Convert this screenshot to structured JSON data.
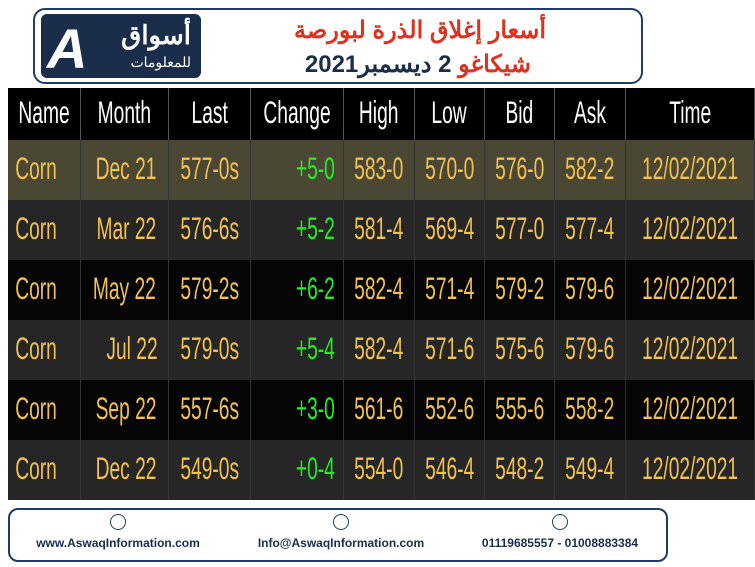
{
  "header": {
    "title_line1": "أسعار إغلاق الذرة لبورصة",
    "title_line2_city": "شيكاغو",
    "title_line2_date": "2 ديسمبر2021",
    "logo_name": "أسواق",
    "logo_sub": "للمعلومات",
    "logo_letter": "A"
  },
  "table": {
    "columns": [
      "Name",
      "Month",
      "Last",
      "Change",
      "High",
      "Low",
      "Bid",
      "Ask",
      "Time"
    ],
    "rows": [
      [
        "Corn",
        "Dec 21",
        "577-0s",
        "+5-0",
        "583-0",
        "570-0",
        "576-0",
        "582-2",
        "12/02/2021"
      ],
      [
        "Corn",
        "Mar 22",
        "576-6s",
        "+5-2",
        "581-4",
        "569-4",
        "577-0",
        "577-4",
        "12/02/2021"
      ],
      [
        "Corn",
        "May 22",
        "579-2s",
        "+6-2",
        "582-4",
        "571-4",
        "579-2",
        "579-6",
        "12/02/2021"
      ],
      [
        "Corn",
        "Jul 22",
        "579-0s",
        "+5-4",
        "582-4",
        "571-6",
        "575-6",
        "579-6",
        "12/02/2021"
      ],
      [
        "Corn",
        "Sep 22",
        "557-6s",
        "+3-0",
        "561-6",
        "552-6",
        "555-6",
        "558-2",
        "12/02/2021"
      ],
      [
        "Corn",
        "Dec 22",
        "549-0s",
        "+0-4",
        "554-0",
        "546-4",
        "548-2",
        "549-4",
        "12/02/2021"
      ]
    ]
  },
  "footer": {
    "website": "www.AswaqInformation.com",
    "email": "Info@AswaqInformation.com",
    "phones": "01119685557 - 01008883384"
  }
}
